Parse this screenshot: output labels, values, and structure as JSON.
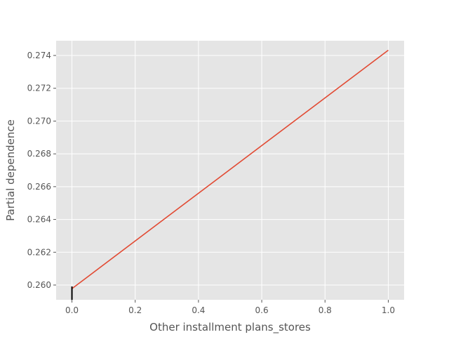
{
  "chart_data": {
    "type": "line",
    "title": "",
    "xlabel": "Other installment plans_stores",
    "ylabel": "Partial dependence",
    "xlim": [
      -0.05,
      1.05
    ],
    "ylim": [
      0.2591,
      0.2749
    ],
    "xticks": [
      0.0,
      0.2,
      0.4,
      0.6,
      0.8,
      1.0
    ],
    "xtick_labels": [
      "0.0",
      "0.2",
      "0.4",
      "0.6",
      "0.8",
      "1.0"
    ],
    "yticks": [
      0.26,
      0.262,
      0.264,
      0.266,
      0.268,
      0.27,
      0.272,
      0.274
    ],
    "ytick_labels": [
      "0.260",
      "0.262",
      "0.264",
      "0.266",
      "0.268",
      "0.270",
      "0.272",
      "0.274"
    ],
    "grid": true,
    "series": [
      {
        "x": [
          0.0,
          1.0
        ],
        "y": [
          0.25978,
          0.27432
        ],
        "color": "#E24A33"
      }
    ],
    "rug": {
      "x": [
        0.0
      ],
      "color": "#000000"
    },
    "colors": {
      "background": "#E5E5E5",
      "grid": "#FFFFFF",
      "text": "#555555"
    }
  }
}
